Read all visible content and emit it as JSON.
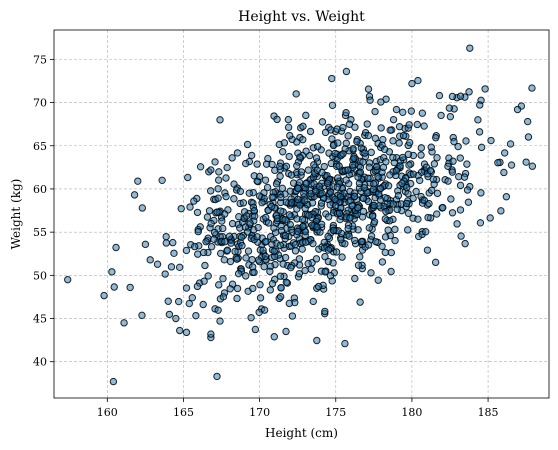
{
  "chart_data": {
    "type": "scatter",
    "title": "Height vs. Weight",
    "xlabel": "Height (cm)",
    "ylabel": "Weight (kg)",
    "xlim": [
      156.5,
      189.0
    ],
    "ylim": [
      35.8,
      78.4
    ],
    "xticks": [
      160,
      165,
      170,
      175,
      180,
      185
    ],
    "yticks": [
      40,
      45,
      50,
      55,
      60,
      65,
      70,
      75
    ],
    "grid": true,
    "marker_fill": "#1f77b4",
    "marker_edge": "#000000",
    "marker_alpha": 0.5,
    "generated_cloud": {
      "count": 1000,
      "x_mean": 174.5,
      "x_sd": 4.9,
      "y_mean": 58.2,
      "y_sd": 5.4,
      "correlation": 0.48,
      "seed": 7
    },
    "series": [
      {
        "x": [
          157.4,
          160.4,
          160.3,
          161.1,
          161.5,
          162.0,
          163.6,
          165.2,
          166.8,
          166.8,
          167.2,
          167.4,
          175.7,
          176.6,
          183.8,
          187.6,
          187.5,
          186.2,
          180.0,
          175.6,
          172.4,
          164.5,
          164.0,
          162.3
        ],
        "y": [
          49.5,
          37.7,
          50.4,
          44.5,
          48.6,
          60.9,
          61.0,
          43.4,
          42.8,
          43.2,
          38.3,
          68.0,
          73.6,
          46.9,
          76.3,
          67.8,
          63.1,
          59.1,
          72.2,
          42.1,
          71.0,
          45.0,
          47.0,
          57.8
        ]
      }
    ]
  }
}
